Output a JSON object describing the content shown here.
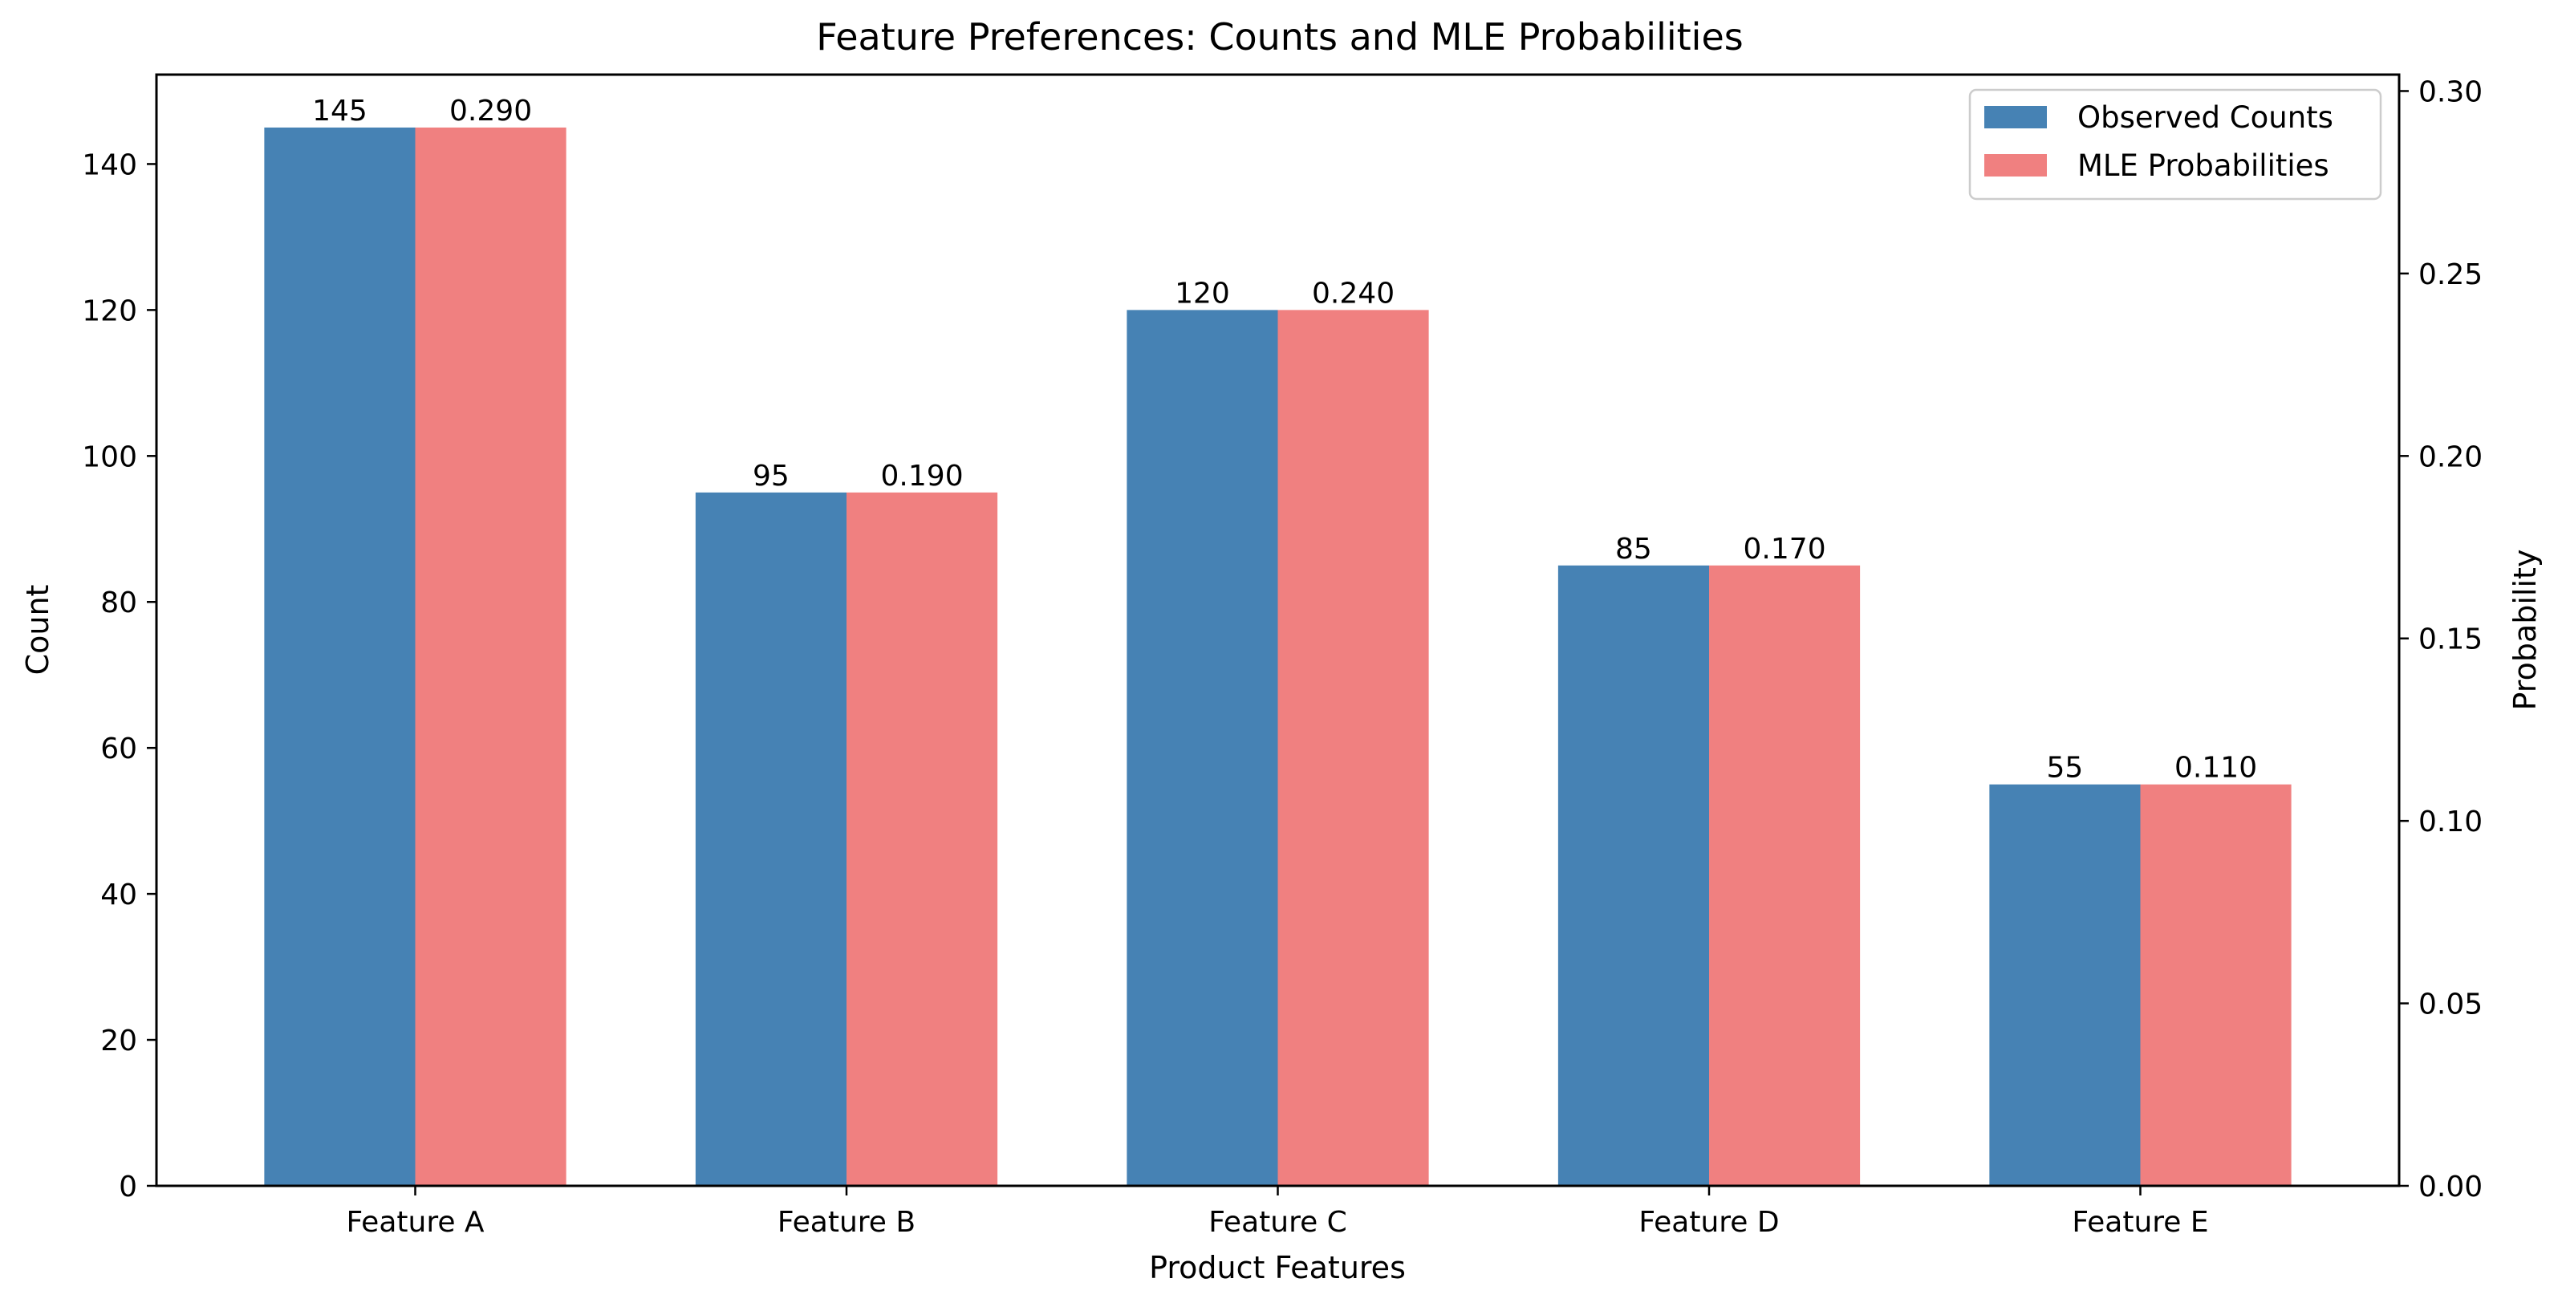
{
  "chart_data": {
    "type": "bar",
    "title": "Feature Preferences: Counts and MLE Probabilities",
    "xlabel": "Product Features",
    "ylabel": "Count",
    "y2label": "Probability",
    "categories": [
      "Feature A",
      "Feature B",
      "Feature C",
      "Feature D",
      "Feature E"
    ],
    "series": [
      {
        "name": "Observed Counts",
        "axis": "left",
        "color": "#4682b4",
        "values": [
          145,
          95,
          120,
          85,
          55
        ],
        "labels": [
          "145",
          "95",
          "120",
          "85",
          "55"
        ]
      },
      {
        "name": "MLE Probabilities",
        "axis": "right",
        "color": "#f08080",
        "values": [
          0.29,
          0.19,
          0.24,
          0.17,
          0.11
        ],
        "labels": [
          "0.290",
          "0.190",
          "0.240",
          "0.170",
          "0.110"
        ]
      }
    ],
    "ylim": [
      0,
      152.25
    ],
    "y2lim": [
      0,
      0.3045
    ],
    "yticks": [
      "0",
      "20",
      "40",
      "60",
      "80",
      "100",
      "120",
      "140"
    ],
    "y2ticks": [
      "0.00",
      "0.05",
      "0.10",
      "0.15",
      "0.20",
      "0.25",
      "0.30"
    ],
    "grid": false,
    "legend_position": "top-right"
  }
}
